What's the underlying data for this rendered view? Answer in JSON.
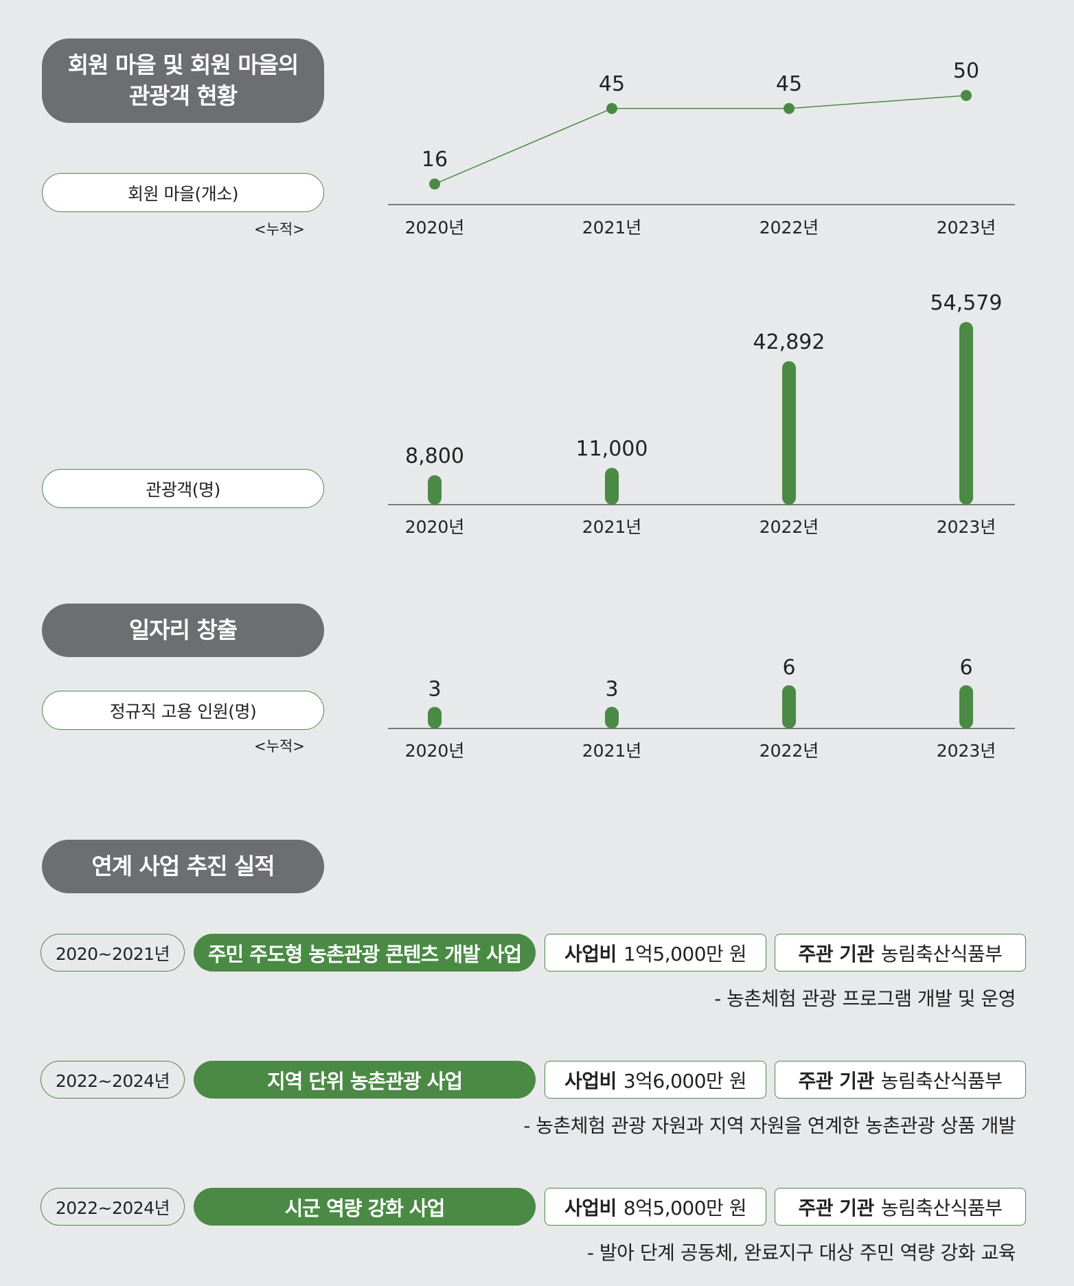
{
  "headers": {
    "tourism_line1": "회원 마을 및 회원 마을의",
    "tourism_line2": "관광객 현황",
    "jobs": "일자리 창출",
    "projects": "연계 사업 추진 실적"
  },
  "labels": {
    "villages": "회원 마을(개소)",
    "villages_note": "<누적>",
    "tourists": "관광객(명)",
    "employees": "정규직 고용 인원(명)",
    "employees_note": "<누적>"
  },
  "colors": {
    "green": "#4a8a45",
    "gray": "#6d6e71",
    "bg": "#e8e9ea"
  },
  "chart_data": [
    {
      "type": "line",
      "categories": [
        "2020년",
        "2021년",
        "2022년",
        "2023년"
      ],
      "series": [
        {
          "values": [
            16,
            45,
            45,
            50
          ]
        }
      ],
      "data_labels": [
        "16",
        "45",
        "45",
        "50"
      ]
    },
    {
      "type": "bar",
      "categories": [
        "2020년",
        "2021년",
        "2022년",
        "2023년"
      ],
      "values": [
        8800,
        11000,
        42892,
        54579
      ],
      "data_labels": [
        "8,800",
        "11,000",
        "42,892",
        "54,579"
      ]
    },
    {
      "type": "bar",
      "categories": [
        "2020년",
        "2021년",
        "2022년",
        "2023년"
      ],
      "values": [
        3,
        3,
        6,
        6
      ],
      "data_labels": [
        "3",
        "3",
        "6",
        "6"
      ]
    }
  ],
  "projects": [
    {
      "period": "2020~2021년",
      "name": "주민 주도형 농촌관광 콘텐츠 개발 사업",
      "cost_label": "사업비",
      "cost": "1억5,000만 원",
      "agency_label": "주관 기관",
      "agency": "농림축산식품부",
      "desc": "- 농촌체험 관광 프로그램 개발 및 운영"
    },
    {
      "period": "2022~2024년",
      "name": "지역 단위 농촌관광 사업",
      "cost_label": "사업비",
      "cost": "3억6,000만 원",
      "agency_label": "주관 기관",
      "agency": "농림축산식품부",
      "desc": "- 농촌체험 관광 자원과 지역 자원을 연계한 농촌관광 상품 개발"
    },
    {
      "period": "2022~2024년",
      "name": "시군 역량 강화 사업",
      "cost_label": "사업비",
      "cost": "8억5,000만 원",
      "agency_label": "주관 기관",
      "agency": "농림축산식품부",
      "desc": "- 발아 단계 공동체, 완료지구 대상 주민 역량 강화 교육"
    }
  ]
}
